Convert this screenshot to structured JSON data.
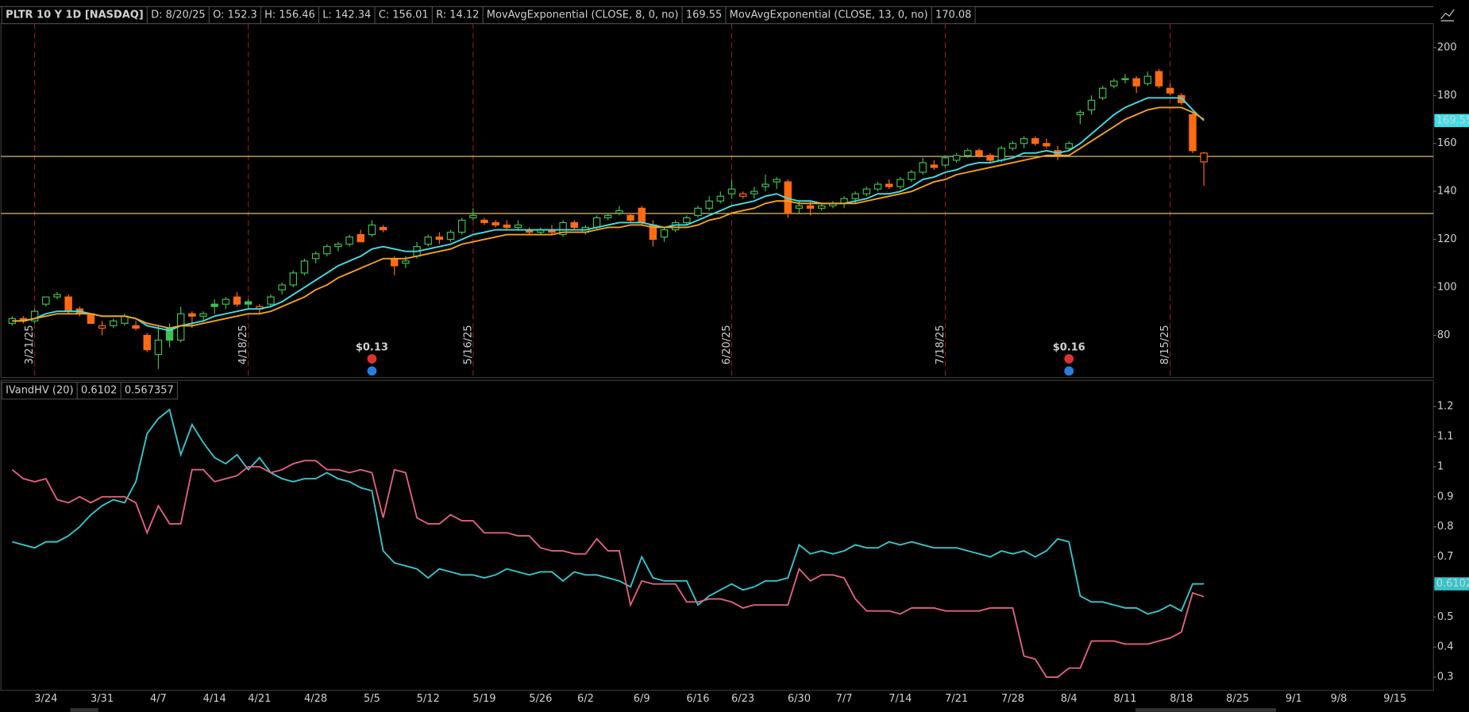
{
  "chart_data": {
    "type": "candlestick",
    "title": "PLTR 10 Y 1D [NASDAQ]",
    "info": [
      "D: 8/20/25",
      "O: 152.3",
      "H: 156.46",
      "L: 142.34",
      "C: 156.01",
      "R: 14.12"
    ],
    "categories": [
      null,
      null,
      null,
      "3/24",
      null,
      null,
      null,
      null,
      "3/31",
      null,
      null,
      null,
      null,
      "4/7",
      null,
      null,
      null,
      null,
      "4/14",
      null,
      null,
      null,
      "4/21",
      null,
      null,
      null,
      null,
      "4/28",
      null,
      null,
      null,
      null,
      "5/5",
      null,
      null,
      null,
      null,
      "5/12",
      null,
      null,
      null,
      null,
      "5/19",
      null,
      null,
      null,
      null,
      "5/26",
      null,
      null,
      null,
      "6/2",
      null,
      null,
      null,
      null,
      "6/9",
      null,
      null,
      null,
      null,
      "6/16",
      null,
      null,
      null,
      "6/23",
      null,
      null,
      null,
      null,
      "6/30",
      null,
      null,
      null,
      "7/7",
      null,
      null,
      null,
      null,
      "7/14",
      null,
      null,
      null,
      null,
      "7/21",
      null,
      null,
      null,
      null,
      "7/28",
      null,
      null,
      null,
      null,
      "8/4",
      null,
      null,
      null,
      null,
      "8/11",
      null,
      null,
      null,
      null,
      "8/18",
      null,
      null,
      null,
      null,
      "8/25",
      null,
      null,
      null,
      null,
      "9/1",
      null,
      null,
      null,
      "9/8",
      null,
      null,
      null,
      null,
      "9/15",
      null,
      null,
      null,
      null
    ],
    "open": [
      85,
      87,
      86,
      93,
      96,
      96,
      91,
      89,
      83,
      84,
      85,
      84,
      80,
      72,
      83,
      78,
      89,
      88,
      93,
      93,
      96,
      94,
      91,
      93,
      99,
      101,
      106,
      112,
      114,
      117,
      118,
      122,
      122,
      125,
      112,
      110,
      113,
      118,
      121,
      120,
      123,
      129,
      128,
      127,
      126,
      125,
      124,
      123,
      124,
      122,
      127,
      123,
      125,
      129,
      131,
      130,
      133,
      126,
      121,
      124,
      127,
      130,
      133,
      136,
      139,
      138,
      139,
      142,
      144,
      144,
      133,
      134,
      133,
      134,
      135,
      137,
      139,
      141,
      143,
      142,
      145,
      148,
      151,
      151,
      153,
      155,
      157,
      155,
      153,
      158,
      160,
      162,
      160,
      157,
      158,
      172,
      174,
      179,
      184,
      187,
      187,
      185,
      190,
      183,
      180,
      172,
      152.3,
      null,
      null,
      null,
      null,
      null,
      null,
      null,
      null,
      null,
      null,
      null,
      null,
      null,
      null,
      null,
      null,
      null,
      null,
      null,
      null,
      null
    ],
    "high": [
      88,
      88,
      91,
      96,
      98,
      97,
      92,
      89,
      86,
      87,
      89,
      86,
      81,
      84,
      85,
      92,
      90,
      90,
      95,
      96,
      98,
      95,
      93,
      97,
      102,
      107,
      112,
      115,
      118,
      119,
      122,
      124,
      128,
      126,
      113,
      113,
      119,
      122,
      123,
      124,
      129,
      133,
      129,
      128,
      128,
      128,
      125,
      125,
      126,
      128,
      128,
      126,
      130,
      131,
      134,
      131,
      134,
      128,
      125,
      128,
      130,
      134,
      138,
      140,
      145,
      140,
      142,
      147,
      146,
      145,
      136,
      136,
      135,
      136,
      138,
      140,
      142,
      144,
      145,
      146,
      149,
      154,
      153,
      155,
      156,
      158,
      158,
      156,
      159,
      161,
      163,
      163,
      162,
      159,
      161,
      174,
      180,
      184,
      187,
      189,
      188,
      190,
      191,
      185,
      181,
      173,
      156.46,
      null,
      null,
      null,
      null,
      null,
      null,
      null,
      null,
      null,
      null,
      null,
      null,
      null,
      null,
      null,
      null,
      null,
      null,
      null,
      null,
      null
    ],
    "low": [
      84,
      85,
      85,
      92,
      95,
      89,
      88,
      85,
      80,
      83,
      84,
      82,
      73,
      66,
      75,
      77,
      83,
      86,
      89,
      91,
      92,
      91,
      89,
      92,
      97,
      100,
      105,
      110,
      113,
      115,
      117,
      119,
      121,
      123,
      105,
      108,
      112,
      117,
      118,
      119,
      122,
      128,
      126,
      125,
      124,
      124,
      122,
      122,
      122,
      121,
      124,
      122,
      124,
      128,
      130,
      127,
      126,
      117,
      119,
      123,
      126,
      129,
      132,
      135,
      137,
      137,
      137,
      140,
      141,
      129,
      131,
      130,
      132,
      133,
      133,
      135,
      138,
      140,
      141,
      141,
      144,
      147,
      149,
      150,
      152,
      154,
      154,
      152,
      152,
      157,
      158,
      159,
      158,
      153,
      157,
      168,
      172,
      178,
      183,
      185,
      181,
      184,
      183,
      180,
      176,
      156,
      142.34,
      null,
      null,
      null,
      null,
      null,
      null,
      null,
      null,
      null,
      null,
      null,
      null,
      null,
      null,
      null,
      null,
      null,
      null,
      null,
      null,
      null
    ],
    "close": [
      87,
      86,
      90,
      96,
      97,
      90,
      89,
      85,
      84,
      86,
      88,
      83,
      74,
      78,
      78,
      89,
      88,
      89,
      92,
      95,
      93,
      93,
      92,
      96,
      101,
      106,
      111,
      114,
      117,
      118,
      121,
      119,
      126,
      124,
      109,
      111,
      117,
      121,
      120,
      123,
      128,
      130,
      127,
      126,
      125,
      126,
      123,
      124,
      123,
      127,
      125,
      125,
      129,
      130,
      132,
      128,
      127,
      120,
      124,
      127,
      129,
      133,
      136,
      138,
      141,
      139,
      140,
      143,
      145,
      131,
      134,
      133,
      134,
      135,
      137,
      139,
      141,
      143,
      142,
      145,
      148,
      152,
      150,
      154,
      155,
      157,
      155,
      153,
      158,
      160,
      162,
      160,
      159,
      155,
      160,
      173,
      178,
      183,
      186,
      187,
      184,
      188,
      184,
      181,
      177,
      157,
      156.01,
      null,
      null,
      null,
      null,
      null,
      null,
      null,
      null,
      null,
      null,
      null,
      null,
      null,
      null,
      null,
      null,
      null,
      null,
      null,
      null,
      null
    ],
    "up_color": "#3fbf4f",
    "down_color": "#ff6a13",
    "overlays": [
      {
        "name": "MovAvgExponential (CLOSE, 8, 0, no)",
        "color": "#3fe0e8",
        "badge": true,
        "values": [
          86,
          86,
          87,
          89,
          90,
          90,
          90,
          89,
          88,
          88,
          88,
          87,
          84,
          83,
          82,
          84,
          85,
          86,
          88,
          89,
          90,
          91,
          91,
          92,
          94,
          97,
          100,
          103,
          106,
          109,
          111,
          113,
          116,
          117,
          116,
          115,
          115,
          116,
          117,
          118,
          120,
          122,
          123,
          124,
          124,
          124,
          124,
          124,
          124,
          124,
          124,
          124,
          125,
          126,
          127,
          127,
          127,
          126,
          125,
          126,
          126,
          128,
          130,
          132,
          134,
          135,
          136,
          138,
          139,
          137,
          136,
          136,
          135,
          135,
          135,
          136,
          137,
          139,
          139,
          140,
          142,
          145,
          146,
          148,
          149,
          151,
          152,
          152,
          153,
          154,
          156,
          156,
          157,
          156,
          157,
          160,
          164,
          168,
          172,
          175,
          177,
          179,
          179,
          179,
          179,
          174,
          169.55,
          null,
          null,
          null,
          null,
          null,
          null,
          null,
          null,
          null,
          null,
          null,
          null,
          null,
          null,
          null,
          null,
          null,
          null,
          null,
          null,
          null
        ]
      },
      {
        "name": "MovAvgExponential (CLOSE, 13, 0, no)",
        "color": "#f5a21b",
        "badge": false,
        "values": [
          86,
          86,
          87,
          88,
          89,
          89,
          89,
          89,
          88,
          88,
          88,
          87,
          85,
          84,
          83,
          84,
          84,
          85,
          86,
          87,
          88,
          89,
          89,
          90,
          92,
          94,
          96,
          99,
          101,
          104,
          106,
          108,
          110,
          112,
          112,
          112,
          113,
          114,
          115,
          116,
          118,
          119,
          120,
          121,
          122,
          122,
          122,
          122,
          122,
          123,
          123,
          123,
          124,
          125,
          125,
          126,
          126,
          125,
          125,
          125,
          125,
          126,
          128,
          129,
          131,
          132,
          133,
          135,
          136,
          136,
          135,
          135,
          135,
          135,
          135,
          135,
          136,
          137,
          138,
          139,
          140,
          142,
          144,
          145,
          147,
          148,
          149,
          150,
          151,
          152,
          153,
          154,
          155,
          155,
          155,
          158,
          161,
          164,
          167,
          170,
          172,
          174,
          175,
          175,
          175,
          173,
          170.08,
          null,
          null,
          null,
          null,
          null,
          null,
          null,
          null,
          null,
          null,
          null,
          null,
          null,
          null,
          null,
          null,
          null,
          null,
          null,
          null,
          null
        ]
      }
    ],
    "price_levels": [
      154.6,
      130.8
    ],
    "level_color": "#f3d27a",
    "date_markers": [
      {
        "label": "3/21/25",
        "index": 2
      },
      {
        "label": "4/18/25",
        "index": 21
      },
      {
        "label": "5/16/25",
        "index": 41
      },
      {
        "label": "6/20/25",
        "index": 64
      },
      {
        "label": "7/18/25",
        "index": 83
      },
      {
        "label": "8/15/25",
        "index": 103
      }
    ],
    "earnings": [
      {
        "label": "$0.13",
        "index": 32
      },
      {
        "label": "$0.16",
        "index": 94
      }
    ],
    "ylim": [
      62.4,
      210
    ],
    "yticks": [
      80,
      100,
      120,
      140,
      160,
      180,
      200
    ],
    "lower_panel": {
      "type": "line",
      "title": "IVandHV (20)",
      "ylim": [
        0.256,
        1.228
      ],
      "yticks": [
        0.3,
        0.4,
        0.5,
        0.6,
        0.7,
        0.8,
        0.9,
        1,
        1.1,
        1.2
      ],
      "series": [
        {
          "color": "#34c6cc",
          "badge": true,
          "values": [
            0.75,
            0.74,
            0.73,
            0.75,
            0.75,
            0.77,
            0.8,
            0.84,
            0.87,
            0.89,
            0.88,
            0.95,
            1.11,
            1.16,
            1.19,
            1.04,
            1.14,
            1.08,
            1.03,
            1.01,
            1.04,
            0.99,
            1.03,
            0.98,
            0.96,
            0.95,
            0.96,
            0.96,
            0.98,
            0.96,
            0.95,
            0.93,
            0.92,
            0.72,
            0.68,
            0.67,
            0.66,
            0.63,
            0.66,
            0.65,
            0.64,
            0.64,
            0.63,
            0.64,
            0.66,
            0.65,
            0.64,
            0.65,
            0.65,
            0.62,
            0.65,
            0.64,
            0.64,
            0.63,
            0.62,
            0.6,
            0.7,
            0.63,
            0.62,
            0.62,
            0.62,
            0.54,
            0.57,
            0.59,
            0.61,
            0.59,
            0.6,
            0.62,
            0.62,
            0.63,
            0.74,
            0.71,
            0.72,
            0.71,
            0.72,
            0.74,
            0.73,
            0.73,
            0.75,
            0.74,
            0.75,
            0.74,
            0.73,
            0.73,
            0.73,
            0.72,
            0.71,
            0.7,
            0.72,
            0.71,
            0.72,
            0.7,
            0.72,
            0.76,
            0.75,
            0.57,
            0.55,
            0.55,
            0.54,
            0.53,
            0.53,
            0.51,
            0.52,
            0.54,
            0.52,
            0.61,
            0.6102,
            null,
            null,
            null,
            null,
            null,
            null,
            null,
            null,
            null,
            null,
            null,
            null,
            null,
            null,
            null,
            null,
            null,
            null,
            null,
            null,
            null
          ]
        },
        {
          "color": "#e0607e",
          "badge": false,
          "values": [
            0.99,
            0.96,
            0.95,
            0.96,
            0.89,
            0.88,
            0.9,
            0.88,
            0.9,
            0.9,
            0.9,
            0.88,
            0.78,
            0.87,
            0.81,
            0.81,
            0.99,
            0.99,
            0.95,
            0.96,
            0.97,
            1,
            1,
            0.98,
            0.99,
            1.01,
            1.02,
            1.02,
            0.99,
            0.99,
            0.98,
            0.99,
            0.98,
            0.83,
            0.99,
            0.98,
            0.83,
            0.81,
            0.81,
            0.84,
            0.82,
            0.82,
            0.78,
            0.78,
            0.78,
            0.77,
            0.77,
            0.73,
            0.72,
            0.72,
            0.71,
            0.71,
            0.76,
            0.72,
            0.72,
            0.54,
            0.62,
            0.61,
            0.61,
            0.61,
            0.55,
            0.55,
            0.56,
            0.56,
            0.55,
            0.53,
            0.54,
            0.54,
            0.54,
            0.54,
            0.66,
            0.62,
            0.64,
            0.64,
            0.63,
            0.56,
            0.52,
            0.52,
            0.52,
            0.51,
            0.53,
            0.53,
            0.53,
            0.52,
            0.52,
            0.52,
            0.52,
            0.53,
            0.53,
            0.53,
            0.37,
            0.36,
            0.3,
            0.3,
            0.33,
            0.33,
            0.42,
            0.42,
            0.42,
            0.41,
            0.41,
            0.41,
            0.42,
            0.43,
            0.45,
            0.58,
            0.567357,
            null,
            null,
            null,
            null,
            null,
            null,
            null,
            null,
            null,
            null,
            null,
            null,
            null,
            null,
            null,
            null,
            null,
            null,
            null,
            null,
            null
          ]
        }
      ]
    }
  }
}
